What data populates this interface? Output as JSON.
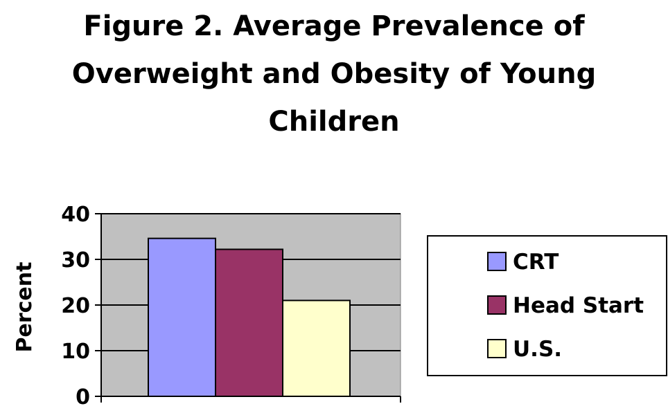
{
  "chart_data": {
    "type": "bar",
    "title": "Figure 2. Average Prevalence of Overweight and Obesity of Young Children",
    "title_lines": [
      "Figure 2. Average Prevalence of",
      "Overweight and Obesity of Young",
      "Children"
    ],
    "xlabel": "",
    "ylabel": "Percent",
    "ylim": [
      0,
      40
    ],
    "yticks": [
      "0",
      "10",
      "20",
      "30",
      "40"
    ],
    "grid": true,
    "legend_position": "right",
    "plot_background": "#c0c0c0",
    "series": [
      {
        "name": "CRT",
        "values": [
          34.6
        ],
        "color": "#9999ff"
      },
      {
        "name": "Head Start",
        "values": [
          32.2
        ],
        "color": "#993366"
      },
      {
        "name": "U.S.",
        "values": [
          21.0
        ],
        "color": "#ffffcc"
      }
    ]
  }
}
